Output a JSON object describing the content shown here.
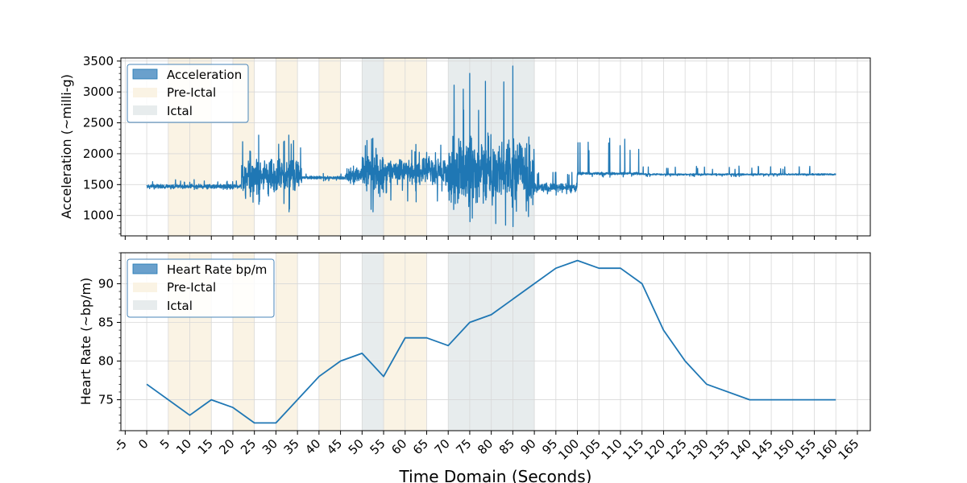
{
  "colors": {
    "line": "#1f77b4",
    "legend_line_patch": "#6aa0cc",
    "pre_ictal": "#faf3e4",
    "ictal": "#e7eced",
    "grid": "#d8d8d8",
    "legend_border": "#4a86b8"
  },
  "chart_data": [
    {
      "type": "line",
      "id": "acceleration",
      "ylabel": "Acceleration (~milli-g)",
      "xlim": [
        -6,
        168
      ],
      "ylim": [
        670,
        3550
      ],
      "yticks": [
        1000,
        1500,
        2000,
        2500,
        3000,
        3500
      ],
      "grid": true,
      "legend_position": "top-left",
      "legend": [
        "Acceleration",
        "Pre-Ictal",
        "Ictal"
      ],
      "series": [
        {
          "name": "Acceleration",
          "segments": [
            {
              "x0": 0,
              "x1": 22,
              "mean": 1470,
              "amp": 40,
              "max": 1580,
              "min": 1420
            },
            {
              "x0": 22,
              "x1": 30,
              "mean": 1600,
              "amp": 350,
              "max": 2300,
              "min": 1180
            },
            {
              "x0": 30,
              "x1": 36,
              "mean": 1650,
              "amp": 300,
              "max": 2300,
              "min": 1060
            },
            {
              "x0": 36,
              "x1": 46,
              "mean": 1610,
              "amp": 30,
              "max": 1680,
              "min": 1560
            },
            {
              "x0": 46,
              "x1": 50,
              "mean": 1650,
              "amp": 130,
              "max": 1800,
              "min": 1500
            },
            {
              "x0": 50,
              "x1": 55,
              "mean": 1700,
              "amp": 350,
              "max": 2250,
              "min": 1060
            },
            {
              "x0": 55,
              "x1": 70,
              "mean": 1720,
              "amp": 250,
              "max": 2150,
              "min": 1220
            },
            {
              "x0": 70,
              "x1": 80,
              "mean": 1700,
              "amp": 700,
              "max": 3300,
              "min": 900
            },
            {
              "x0": 80,
              "x1": 90,
              "mean": 1700,
              "amp": 650,
              "max": 3420,
              "min": 820
            },
            {
              "x0": 90,
              "x1": 100,
              "mean": 1450,
              "amp": 80,
              "max": 1700,
              "min": 1330
            },
            {
              "x0": 100,
              "x1": 115,
              "mean": 1680,
              "amp": 25,
              "max": 2250,
              "min": 1620
            },
            {
              "x0": 115,
              "x1": 160,
              "mean": 1665,
              "amp": 15,
              "max": 1800,
              "min": 1630
            }
          ]
        }
      ]
    },
    {
      "type": "line",
      "id": "heart_rate",
      "ylabel": "Heart Rate (~bp/m)",
      "xlabel": "Time Domain (Seconds)",
      "xlim": [
        -6,
        168
      ],
      "ylim": [
        71,
        94
      ],
      "yticks": [
        75,
        80,
        85,
        90
      ],
      "grid": true,
      "legend_position": "top-left",
      "legend": [
        "Heart Rate bp/m",
        "Pre-Ictal",
        "Ictal"
      ],
      "series": [
        {
          "name": "Heart Rate bp/m",
          "x": [
            0,
            10,
            15,
            20,
            25,
            30,
            40,
            45,
            50,
            55,
            60,
            65,
            70,
            75,
            80,
            90,
            95,
            100,
            105,
            110,
            115,
            120,
            125,
            130,
            140,
            145,
            150,
            155,
            160
          ],
          "y": [
            77,
            73,
            75,
            74,
            72,
            72,
            78,
            80,
            81,
            78,
            83,
            83,
            82,
            85,
            86,
            90,
            92,
            93,
            92,
            92,
            90,
            84,
            80,
            77,
            75,
            75,
            75,
            75,
            75
          ]
        }
      ]
    }
  ],
  "regions": {
    "pre_ictal": [
      [
        5,
        15
      ],
      [
        20,
        25
      ],
      [
        30,
        35
      ],
      [
        40,
        45
      ],
      [
        55,
        65
      ]
    ],
    "ictal": [
      [
        50,
        55
      ],
      [
        70,
        90
      ]
    ]
  },
  "xticks": [
    -5,
    0,
    5,
    10,
    15,
    20,
    25,
    30,
    35,
    40,
    45,
    50,
    55,
    60,
    65,
    70,
    75,
    80,
    85,
    90,
    95,
    100,
    105,
    110,
    115,
    120,
    125,
    130,
    135,
    140,
    145,
    150,
    155,
    160,
    165
  ]
}
